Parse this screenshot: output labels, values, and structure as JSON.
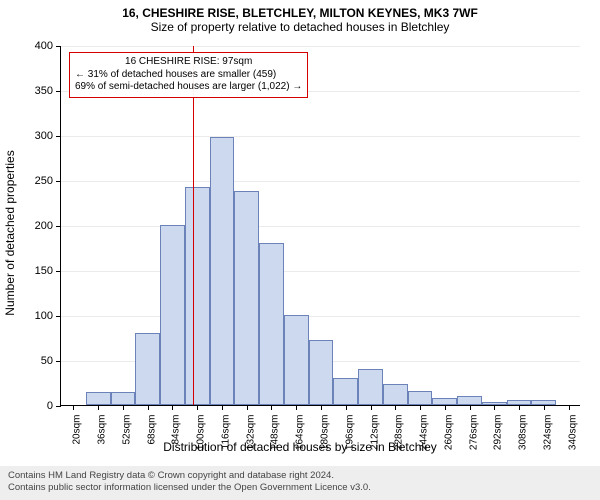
{
  "chart": {
    "type": "histogram",
    "title_line1": "16, CHESHIRE RISE, BLETCHLEY, MILTON KEYNES, MK3 7WF",
    "title_line2": "Size of property relative to detached houses in Bletchley",
    "title_fontsize": 12,
    "xlabel": "Distribution of detached houses by size in Bletchley",
    "ylabel": "Number of detached properties",
    "label_fontsize": 12,
    "background_color": "#ffffff",
    "bar_fill": "#cdd9ef",
    "bar_border": "#6b83b8",
    "marker_color": "#d40000",
    "xlim": [
      12,
      348
    ],
    "ylim": [
      0,
      400
    ],
    "ytick_step": 50,
    "xticks": [
      20,
      36,
      52,
      68,
      84,
      100,
      116,
      132,
      148,
      164,
      180,
      196,
      212,
      228,
      244,
      260,
      276,
      292,
      308,
      324,
      340
    ],
    "xtick_suffix": "sqm",
    "tick_fontsize": 11,
    "bins": [
      {
        "start": 12,
        "end": 28,
        "count": 0
      },
      {
        "start": 28,
        "end": 44,
        "count": 15
      },
      {
        "start": 44,
        "end": 60,
        "count": 15
      },
      {
        "start": 60,
        "end": 76,
        "count": 80
      },
      {
        "start": 76,
        "end": 92,
        "count": 200
      },
      {
        "start": 92,
        "end": 108,
        "count": 242
      },
      {
        "start": 108,
        "end": 124,
        "count": 298
      },
      {
        "start": 124,
        "end": 140,
        "count": 238
      },
      {
        "start": 140,
        "end": 156,
        "count": 180
      },
      {
        "start": 156,
        "end": 172,
        "count": 100
      },
      {
        "start": 172,
        "end": 188,
        "count": 72
      },
      {
        "start": 188,
        "end": 204,
        "count": 30
      },
      {
        "start": 204,
        "end": 220,
        "count": 40
      },
      {
        "start": 220,
        "end": 236,
        "count": 23
      },
      {
        "start": 236,
        "end": 252,
        "count": 16
      },
      {
        "start": 252,
        "end": 268,
        "count": 8
      },
      {
        "start": 268,
        "end": 284,
        "count": 10
      },
      {
        "start": 284,
        "end": 300,
        "count": 3
      },
      {
        "start": 300,
        "end": 316,
        "count": 6
      },
      {
        "start": 316,
        "end": 332,
        "count": 6
      },
      {
        "start": 332,
        "end": 348,
        "count": 0
      }
    ],
    "marker_x": 97,
    "annotation": {
      "line1": "16 CHESHIRE RISE: 97sqm",
      "line2": "← 31% of detached houses are smaller (459)",
      "line3": "69% of semi-detached houses are larger (1,022) →"
    }
  },
  "footer": {
    "line1": "Contains HM Land Registry data © Crown copyright and database right 2024.",
    "line2": "Contains public sector information licensed under the Open Government Licence v3.0."
  }
}
